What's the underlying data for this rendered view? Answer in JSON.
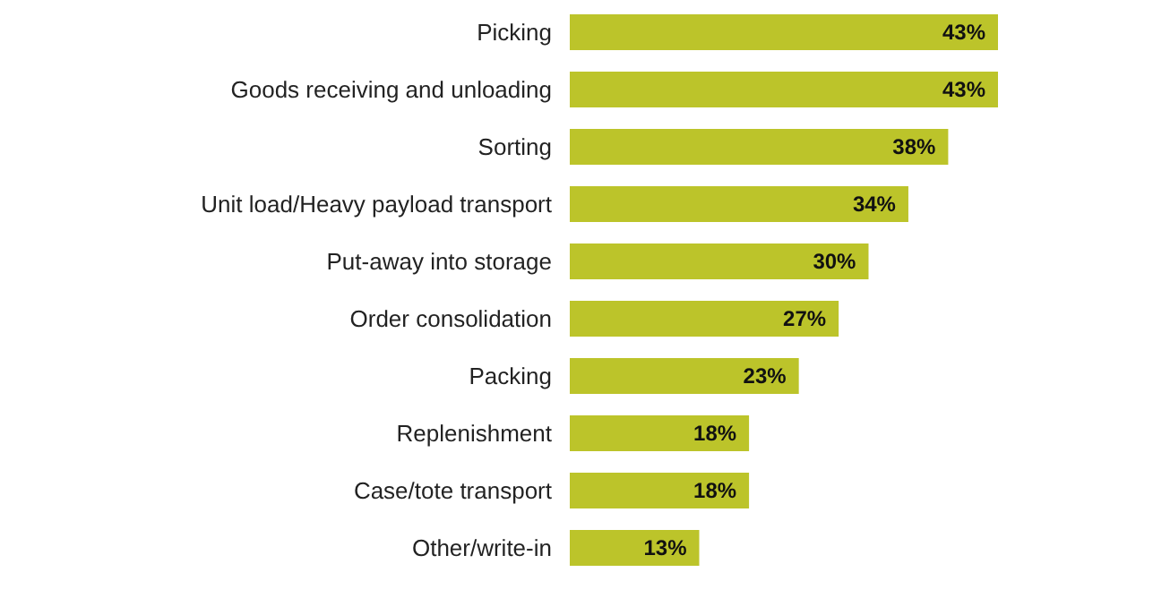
{
  "chart_data": {
    "type": "bar",
    "orientation": "horizontal",
    "categories": [
      "Picking",
      "Goods receiving and unloading",
      "Sorting",
      "Unit load/Heavy payload transport",
      "Put-away into storage",
      "Order consolidation",
      "Packing",
      "Replenishment",
      "Case/tote transport",
      "Other/write-in"
    ],
    "values": [
      43,
      43,
      38,
      34,
      30,
      27,
      23,
      18,
      18,
      13
    ],
    "value_labels": [
      "43%",
      "43%",
      "38%",
      "34%",
      "30%",
      "27%",
      "23%",
      "18%",
      "18%",
      "13%"
    ],
    "color": "#bcc42a"
  }
}
